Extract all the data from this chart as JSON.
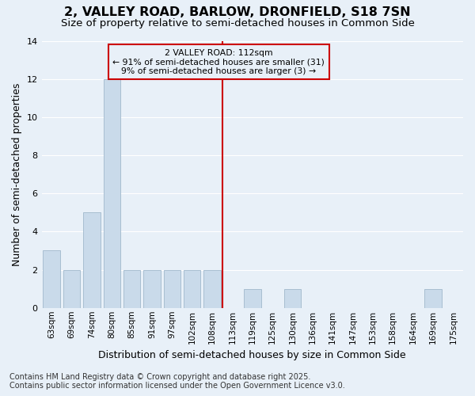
{
  "title": "2, VALLEY ROAD, BARLOW, DRONFIELD, S18 7SN",
  "subtitle": "Size of property relative to semi-detached houses in Common Side",
  "xlabel": "Distribution of semi-detached houses by size in Common Side",
  "ylabel": "Number of semi-detached properties",
  "footnote1": "Contains HM Land Registry data © Crown copyright and database right 2025.",
  "footnote2": "Contains public sector information licensed under the Open Government Licence v3.0.",
  "bar_labels": [
    "63sqm",
    "69sqm",
    "74sqm",
    "80sqm",
    "85sqm",
    "91sqm",
    "97sqm",
    "102sqm",
    "108sqm",
    "113sqm",
    "119sqm",
    "125sqm",
    "130sqm",
    "136sqm",
    "141sqm",
    "147sqm",
    "153sqm",
    "158sqm",
    "164sqm",
    "169sqm",
    "175sqm"
  ],
  "bar_values": [
    3,
    2,
    5,
    12,
    2,
    2,
    2,
    2,
    2,
    0,
    1,
    0,
    1,
    0,
    0,
    0,
    0,
    0,
    0,
    1,
    0
  ],
  "bar_color": "#c9daea",
  "bar_edgecolor": "#a0b8cc",
  "vline_x": 9.0,
  "vline_color": "#cc0000",
  "annotation_title": "2 VALLEY ROAD: 112sqm",
  "annotation_line1": "← 91% of semi-detached houses are smaller (31)",
  "annotation_line2": "9% of semi-detached houses are larger (3) →",
  "ylim": [
    0,
    14
  ],
  "yticks": [
    0,
    2,
    4,
    6,
    8,
    10,
    12,
    14
  ],
  "background_color": "#e8f0f8",
  "grid_color": "#ffffff",
  "title_fontsize": 11.5,
  "subtitle_fontsize": 9.5,
  "axis_label_fontsize": 9,
  "tick_fontsize": 7.5,
  "footnote_fontsize": 7
}
